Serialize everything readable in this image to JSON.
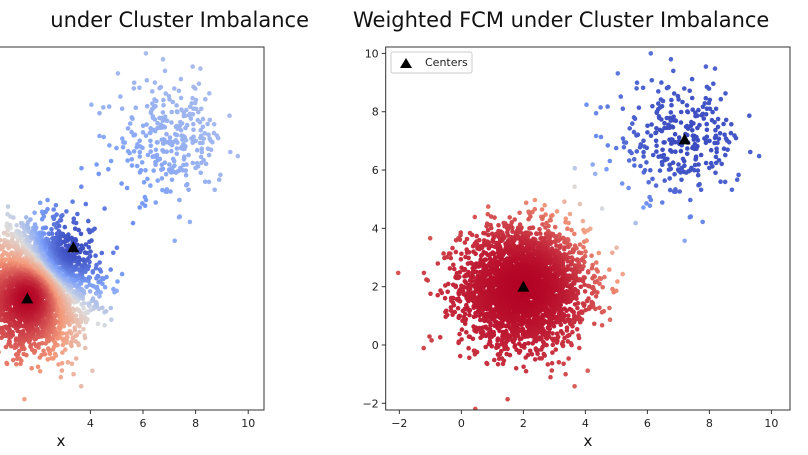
{
  "chart_data": [
    {
      "type": "scatter",
      "title": "under Cluster Imbalance",
      "xlabel": "x",
      "ylabel": "",
      "xlim": [
        -2.44,
        10.6
      ],
      "ylim": [
        -2.23,
        10.22
      ],
      "xticks": [
        "4",
        "6",
        "8",
        "10"
      ],
      "colormap": "coolwarm",
      "color_by": "membership",
      "clusters": [
        {
          "center": [
            2,
            2
          ],
          "std": 1.0,
          "n_approx": 3000
        },
        {
          "center": [
            7,
            7
          ],
          "std": 1.0,
          "n_approx": 300
        }
      ],
      "centers": [
        [
          1.6,
          1.6
        ],
        [
          3.35,
          3.35
        ]
      ],
      "grid": false
    },
    {
      "type": "scatter",
      "title": "Weighted FCM under Cluster Imbalance",
      "xlabel": "x",
      "ylabel": "",
      "xlim": [
        -2.44,
        10.6
      ],
      "ylim": [
        -2.23,
        10.22
      ],
      "xticks": [
        "−2",
        "0",
        "2",
        "4",
        "6",
        "8",
        "10"
      ],
      "yticks": [
        "−2",
        "0",
        "2",
        "4",
        "6",
        "8",
        "10"
      ],
      "colormap": "coolwarm",
      "color_by": "membership",
      "clusters": [
        {
          "center": [
            2,
            2
          ],
          "std": 1.0,
          "n_approx": 3000
        },
        {
          "center": [
            7,
            7
          ],
          "std": 1.0,
          "n_approx": 300
        }
      ],
      "centers": [
        [
          2.0,
          2.0
        ],
        [
          7.2,
          7.05
        ]
      ],
      "legend": {
        "entries": [
          "Centers"
        ],
        "placement": "upper-left"
      },
      "grid": false
    }
  ]
}
